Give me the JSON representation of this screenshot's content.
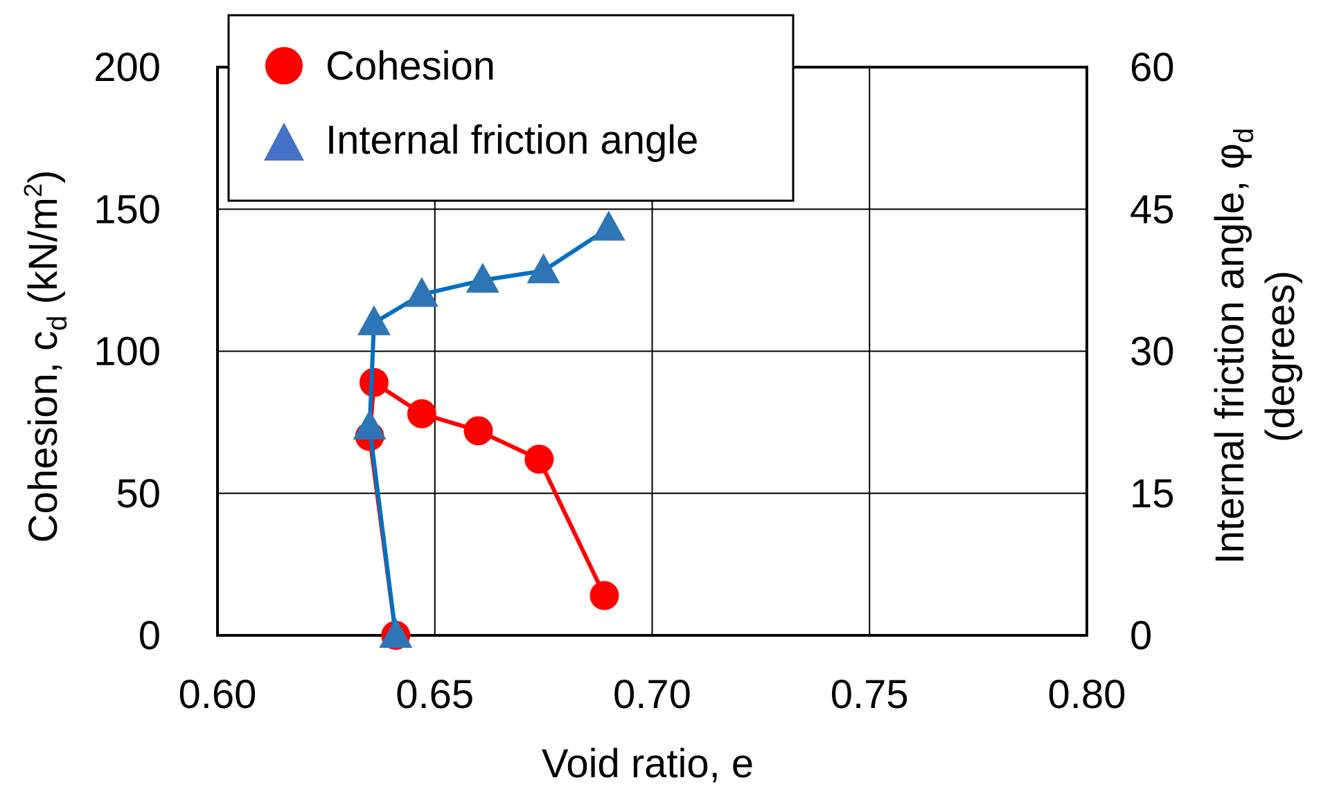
{
  "chart_data": {
    "type": "line",
    "title": "",
    "xlabel": "Void ratio, e",
    "ylabel": {
      "main": "Cohesion, c",
      "sub": "d",
      "unit_open": " (kN/m",
      "unit_sup": "2",
      "unit_close": ")"
    },
    "y2label": {
      "line1_main": "Internal friction angle, ",
      "line1_symbol": "φ",
      "line1_sub": "d",
      "line2": "(degrees)"
    },
    "xlim": [
      0.6,
      0.8
    ],
    "ylim": [
      0,
      200
    ],
    "y2lim": [
      0,
      60
    ],
    "xticks": [
      "0.60",
      "0.65",
      "0.70",
      "0.75",
      "0.80"
    ],
    "yticks": [
      "0",
      "50",
      "100",
      "150",
      "200"
    ],
    "y2ticks": [
      "0",
      "15",
      "30",
      "45",
      "60"
    ],
    "grid": true,
    "legend_position": "top-left",
    "series": [
      {
        "name": "Cohesion",
        "axis": "left",
        "marker": "circle",
        "color": "#ff0000",
        "points": [
          {
            "x": 0.641,
            "y": 0
          },
          {
            "x": 0.635,
            "y": 70
          },
          {
            "x": 0.636,
            "y": 89
          },
          {
            "x": 0.647,
            "y": 78
          },
          {
            "x": 0.66,
            "y": 72
          },
          {
            "x": 0.674,
            "y": 62
          },
          {
            "x": 0.689,
            "y": 14
          }
        ]
      },
      {
        "name": "Internal friction angle",
        "axis": "right",
        "marker": "triangle",
        "color": "#0070c0",
        "marker_color": "#2e75b6",
        "points": [
          {
            "x": 0.641,
            "y": 0
          },
          {
            "x": 0.635,
            "y": 22
          },
          {
            "x": 0.636,
            "y": 33
          },
          {
            "x": 0.647,
            "y": 36
          },
          {
            "x": 0.661,
            "y": 37.5
          },
          {
            "x": 0.675,
            "y": 38.5
          },
          {
            "x": 0.69,
            "y": 43
          }
        ]
      }
    ]
  }
}
